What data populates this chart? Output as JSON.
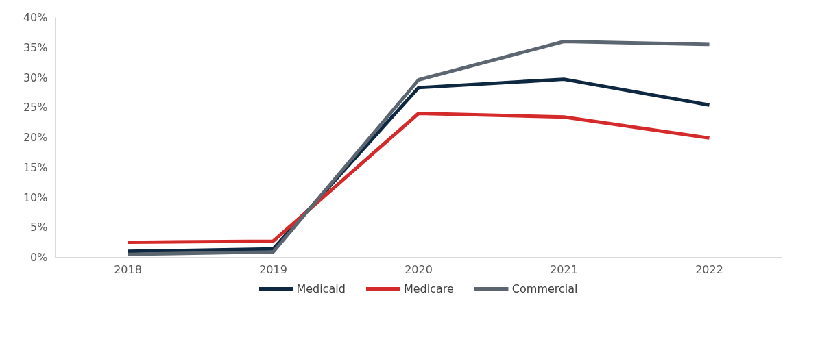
{
  "chart_data": {
    "type": "line",
    "categories": [
      "2018",
      "2019",
      "2020",
      "2021",
      "2022"
    ],
    "series": [
      {
        "name": "Medicaid",
        "color": "#0e2841",
        "values": [
          1.0,
          1.4,
          28.3,
          29.7,
          25.4
        ]
      },
      {
        "name": "Medicare",
        "color": "#d42a2a",
        "values": [
          2.5,
          2.7,
          24.0,
          23.4,
          19.9
        ]
      },
      {
        "name": "Commercial",
        "color": "#5b6670",
        "values": [
          0.5,
          0.9,
          29.6,
          36.0,
          35.5
        ]
      }
    ],
    "ylim": [
      0,
      40
    ],
    "yticks": [
      {
        "value": 0,
        "label": "0%"
      },
      {
        "value": 5,
        "label": "5%"
      },
      {
        "value": 10,
        "label": "10%"
      },
      {
        "value": 15,
        "label": "15%"
      },
      {
        "value": 20,
        "label": "20%"
      },
      {
        "value": 25,
        "label": "25%"
      },
      {
        "value": 30,
        "label": "30%"
      },
      {
        "value": 35,
        "label": "35%"
      },
      {
        "value": 40,
        "label": "40%"
      }
    ],
    "grid": false,
    "legend": "bottom",
    "marker": "none",
    "line_style": "solid"
  }
}
